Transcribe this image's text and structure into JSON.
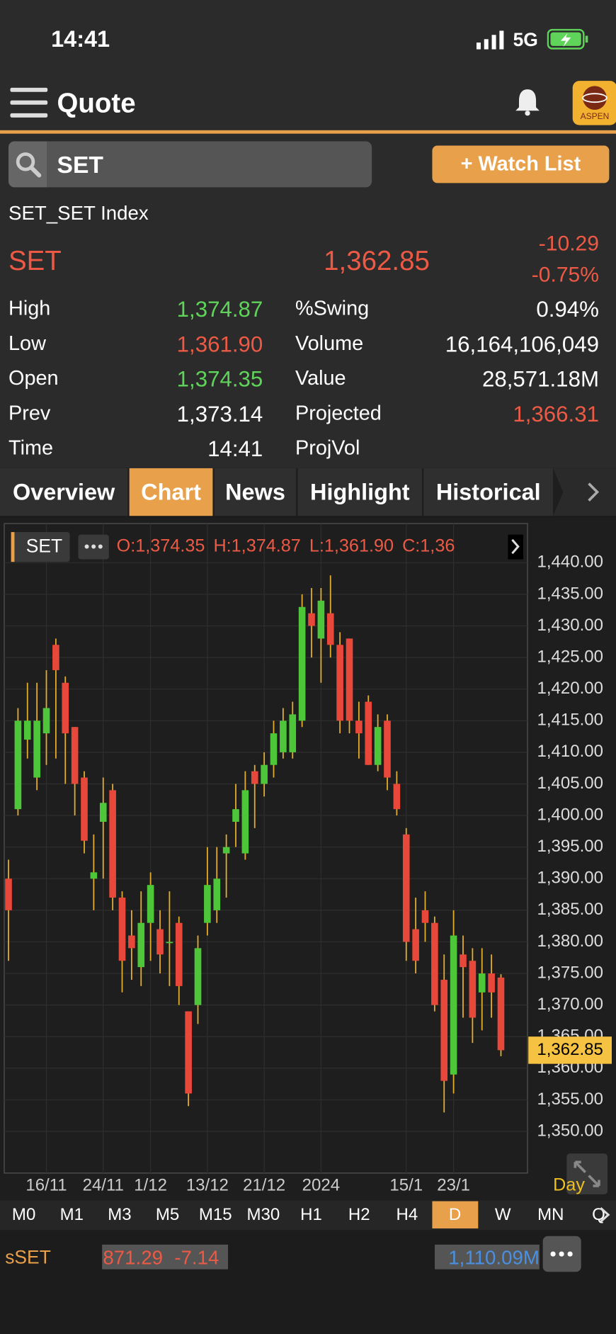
{
  "status_bar": {
    "time": "14:41",
    "network": "5G"
  },
  "header": {
    "title": "Quote",
    "logo": "ASPEN"
  },
  "search": {
    "query": "SET",
    "button": "+ Watch List"
  },
  "instrument": {
    "name": "SET_SET Index",
    "symbol": "SET",
    "last": "1,362.85",
    "change": "-10.29",
    "change_pct": "-0.75%"
  },
  "stats": {
    "left": [
      {
        "label": "High",
        "value": "1,374.87"
      },
      {
        "label": "Low",
        "value": "1,361.90"
      },
      {
        "label": "Open",
        "value": "1,374.35"
      },
      {
        "label": "Prev",
        "value": "1,373.14"
      },
      {
        "label": "Time",
        "value": "14:41"
      }
    ],
    "right": [
      {
        "label": "%Swing",
        "value": "0.94%"
      },
      {
        "label": "Volume",
        "value": "16,164,106,049"
      },
      {
        "label": "Value",
        "value": "28,571.18M"
      },
      {
        "label": "Projected",
        "value": "1,366.31"
      },
      {
        "label": "ProjVol"
      }
    ]
  },
  "tabs": {
    "items": [
      "Overview",
      "Chart",
      "News",
      "Highlight",
      "Historical"
    ],
    "active": 1
  },
  "chart": {
    "type": "candlestick",
    "symbol": "SET",
    "ohlc": [
      "O:1,374.35",
      "H:1,374.87",
      "L:1,361.90",
      "C:1,36"
    ],
    "categories": [
      null,
      null,
      null,
      null,
      "16/11",
      null,
      null,
      null,
      null,
      null,
      "24/11",
      null,
      null,
      null,
      null,
      "1/12",
      null,
      null,
      null,
      null,
      null,
      "13/12",
      null,
      null,
      null,
      null,
      null,
      "21/12",
      null,
      null,
      null,
      null,
      null,
      "2024",
      null,
      null,
      null,
      null,
      null,
      null,
      null,
      null,
      "15/1",
      null,
      null,
      null,
      null,
      "23/1",
      null,
      null,
      null,
      null,
      null
    ],
    "open": [
      1390,
      1401,
      1412,
      1406,
      1413,
      1427,
      1421,
      1414,
      1406,
      1390,
      1399,
      1404,
      1387,
      1381,
      1376,
      1383,
      1382,
      1380,
      1383,
      1369,
      1370,
      1383,
      1385,
      1394,
      1399,
      1394,
      1407,
      1405,
      1408,
      1410,
      1410,
      1415,
      1432,
      1428,
      1432,
      1427,
      1428,
      1415,
      1418,
      1408,
      1415,
      1405,
      1397,
      1382,
      1385,
      1383,
      1374,
      1359,
      1378,
      1377,
      1372,
      1375,
      1374.35
    ],
    "high": [
      1393,
      1417,
      1421,
      1421,
      1423,
      1428,
      1422,
      1414,
      1407,
      1397,
      1406,
      1405,
      1388,
      1385,
      1388,
      1391,
      1385,
      1388,
      1384,
      1369,
      1381,
      1395,
      1395,
      1397,
      1405,
      1407,
      1408,
      1410,
      1415,
      1417,
      1418,
      1435,
      1436,
      1436,
      1438,
      1429,
      1428,
      1418,
      1419,
      1416,
      1416,
      1407,
      1398,
      1387,
      1388,
      1384,
      1378,
      1385,
      1381,
      1379,
      1379,
      1378,
      1374.87
    ],
    "low": [
      1377,
      1400,
      1409,
      1404,
      1408,
      1409,
      1405,
      1400,
      1394,
      1385,
      1390,
      1385,
      1372,
      1374,
      1373,
      1377,
      1375,
      1373,
      1370,
      1354,
      1367,
      1381,
      1383,
      1387,
      1395,
      1393,
      1398,
      1403,
      1406,
      1409,
      1409,
      1414,
      1425,
      1421,
      1425,
      1413,
      1413,
      1409,
      1408,
      1407,
      1404,
      1400,
      1377,
      1375,
      1380,
      1369,
      1353,
      1356,
      1368,
      1364,
      1366,
      1368,
      1361.9
    ],
    "close": [
      1385,
      1415,
      1415,
      1415,
      1417,
      1423,
      1413,
      1405,
      1396,
      1391,
      1402,
      1387,
      1377,
      1379,
      1383,
      1389,
      1378,
      1380,
      1373,
      1356,
      1379,
      1389,
      1390,
      1395,
      1401,
      1404,
      1405,
      1408,
      1413,
      1415,
      1416,
      1433,
      1430,
      1434,
      1427,
      1415,
      1415,
      1413,
      1408,
      1414,
      1406,
      1401,
      1380,
      1377,
      1383,
      1370,
      1358,
      1381,
      1376,
      1368,
      1375,
      1372,
      1362.85
    ],
    "ylim": [
      1343.4,
      1446.2
    ],
    "yticks": [
      {
        "value": 1350,
        "label": "1,350.00"
      },
      {
        "value": 1355,
        "label": "1,355.00"
      },
      {
        "value": 1360,
        "label": "1,360.00"
      },
      {
        "value": 1365,
        "label": "1,365.00"
      },
      {
        "value": 1370,
        "label": "1,370.00"
      },
      {
        "value": 1375,
        "label": "1,375.00"
      },
      {
        "value": 1380,
        "label": "1,380.00"
      },
      {
        "value": 1385,
        "label": "1,385.00"
      },
      {
        "value": 1390,
        "label": "1,390.00"
      },
      {
        "value": 1395,
        "label": "1,395.00"
      },
      {
        "value": 1400,
        "label": "1,400.00"
      },
      {
        "value": 1405,
        "label": "1,405.00"
      },
      {
        "value": 1410,
        "label": "1,410.00"
      },
      {
        "value": 1415,
        "label": "1,415.00"
      },
      {
        "value": 1420,
        "label": "1,420.00"
      },
      {
        "value": 1425,
        "label": "1,425.00"
      },
      {
        "value": 1430,
        "label": "1,430.00"
      },
      {
        "value": 1435,
        "label": "1,435.00"
      },
      {
        "value": 1440,
        "label": "1,440.00"
      }
    ],
    "up_color": "#4ec63a",
    "down_color": "#e8483a",
    "wick_color": "#e2ac2c",
    "period_label": "Day"
  },
  "periods": {
    "items": [
      "M0",
      "M1",
      "M3",
      "M5",
      "M15",
      "M30",
      "H1",
      "H2",
      "H4",
      "D",
      "W",
      "MN",
      "Q"
    ],
    "active": 9
  },
  "footer": {
    "symbol": "sSET",
    "index": "871.29",
    "change": "-7.14",
    "volume": "1,110.09M"
  }
}
